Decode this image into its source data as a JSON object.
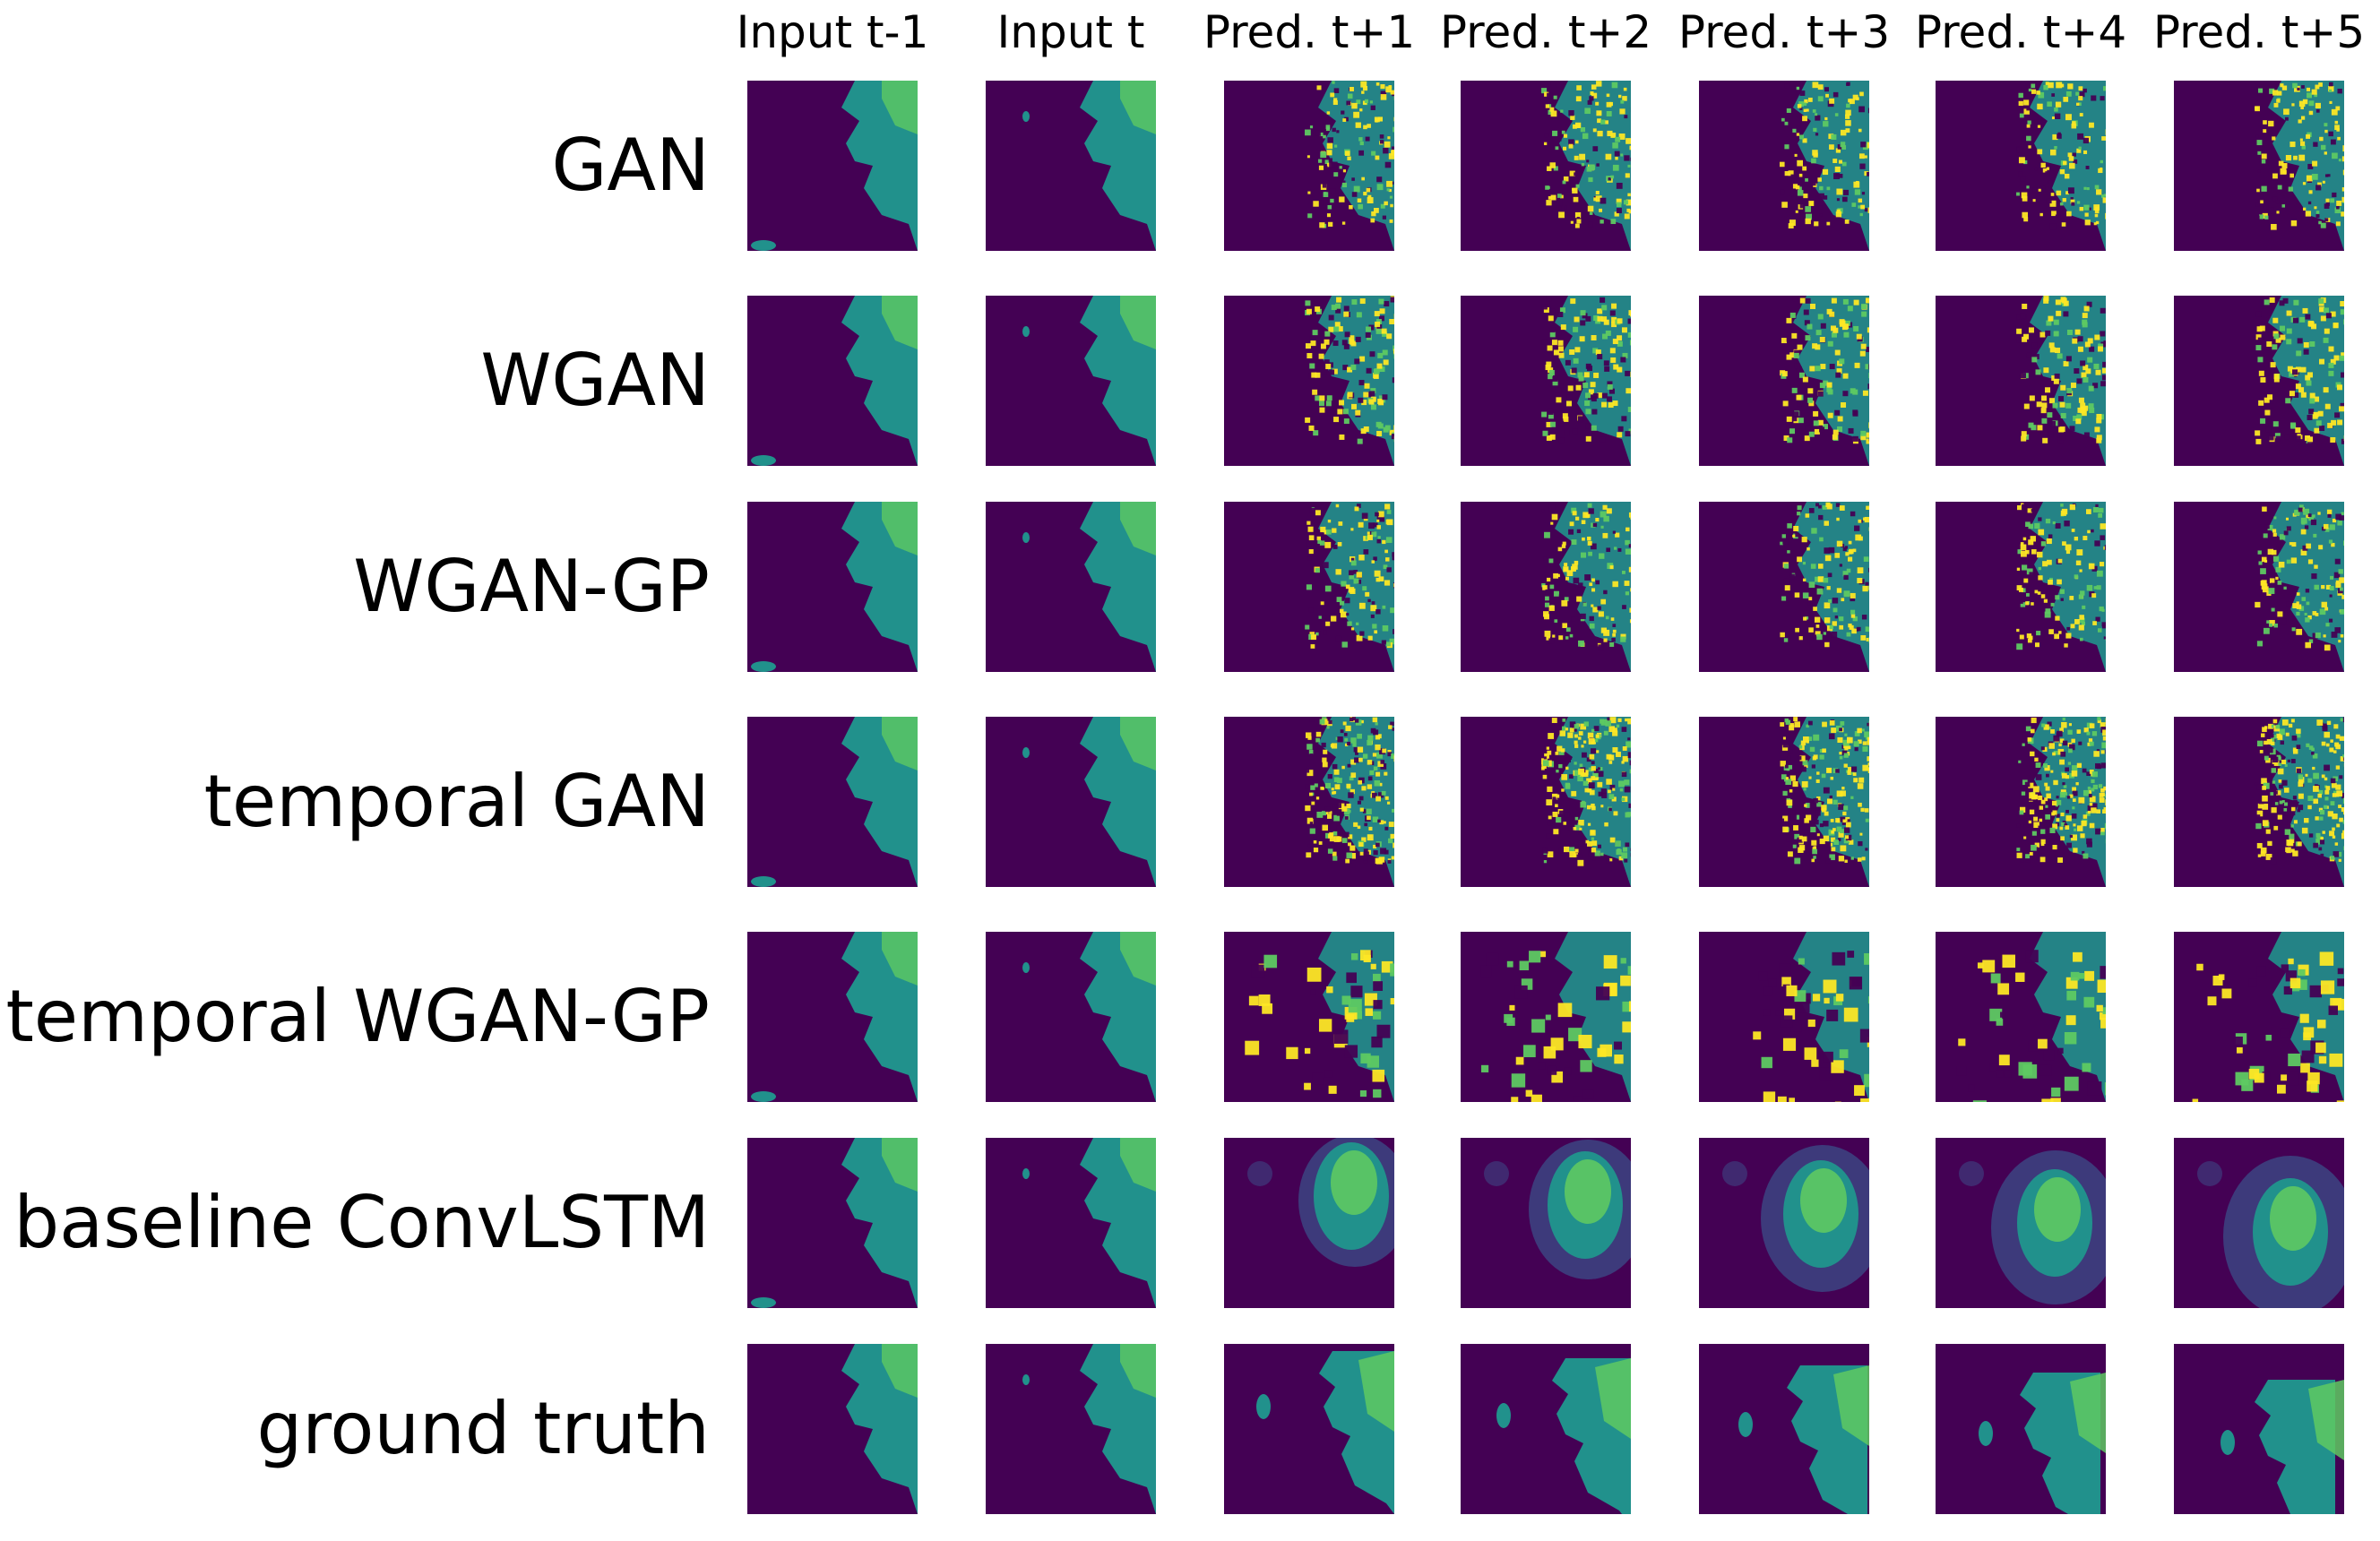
{
  "columns": [
    "Input t-1",
    "Input t",
    "Pred. t+1",
    "Pred. t+2",
    "Pred. t+3",
    "Pred. t+4",
    "Pred. t+5"
  ],
  "rows": [
    {
      "label": "GAN",
      "style": "speckle"
    },
    {
      "label": "WGAN",
      "style": "blocky"
    },
    {
      "label": "WGAN-GP",
      "style": "smooth"
    },
    {
      "label": "temporal GAN",
      "style": "dense"
    },
    {
      "label": "temporal WGAN-GP",
      "style": "blobs"
    },
    {
      "label": "baseline ConvLSTM",
      "style": "blur"
    },
    {
      "label": "ground truth",
      "style": "truth"
    }
  ],
  "colors": {
    "background": "#440154",
    "deep": "#3b528b",
    "teal": "#21918c",
    "green": "#5ec962",
    "yellow": "#fde725"
  }
}
